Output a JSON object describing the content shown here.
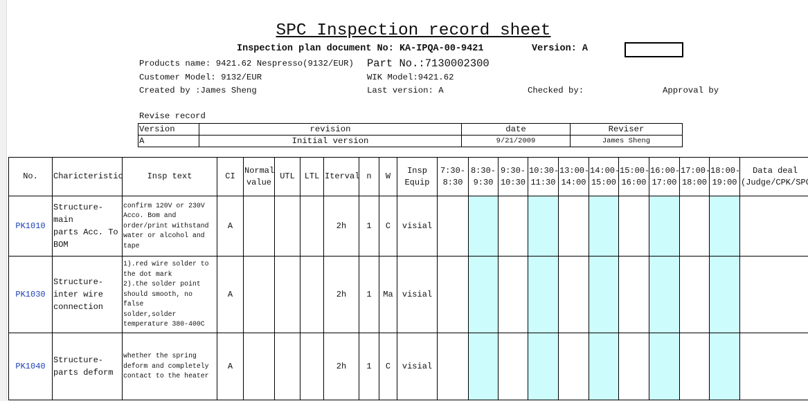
{
  "header": {
    "title": "SPC Inspection record sheet",
    "document_line": "Inspection plan document No: KA-IPQA-00-9421",
    "version": "Version: A",
    "products_name": "Products name: 9421.62 Nespresso(9132/EUR)",
    "part_no": "Part No.:7130002300",
    "customer_model": "Customer Model: 9132/EUR",
    "wik_model": "WIK Model:9421.62",
    "created_by": "Created by :James Sheng",
    "last_version": "Last version: A",
    "checked_by": "Checked by:",
    "approval_by": "Approval by"
  },
  "revise_record": {
    "title": "Revise record",
    "columns": [
      "Version",
      "revision",
      "date",
      "Reviser"
    ],
    "rows": [
      [
        "A",
        "Initial version",
        "9/21/2009",
        "James Sheng"
      ]
    ]
  },
  "table": {
    "columns": [
      "No.",
      "Charicteristic",
      "Insp text",
      "CI",
      "Normal\nvalue",
      "UTL",
      "LTL",
      "Iterval",
      "n",
      "W",
      "Insp\nEquip",
      "7:30-\n8:30",
      "8:30-\n9:30",
      "9:30-\n10:30",
      "10:30-\n11:30",
      "13:00-\n14:00",
      "14:00-\n15:00",
      "15:00-\n16:00",
      "16:00-\n17:00",
      "17:00-\n18:00",
      "18:00-\n19:00",
      "Data deal\n(Judge/CPK/SPC)"
    ],
    "rows": [
      {
        "no": "PK1010",
        "characteristic": "Structure-main\nparts Acc. To\nBOM",
        "insp_text": "confirm 120V or 230V\nAcco. Bom and\norder/print withstand\nwater or alcohol and\ntape",
        "ci": "A",
        "interval": "2h",
        "n": "1",
        "w": "C",
        "equip": "visial"
      },
      {
        "no": "PK1030",
        "characteristic": "Structure-\ninter wire\nconnection",
        "insp_text": "1).red wire solder to\nthe dot mark\n2).the solder point\nshould smooth, no false\nsolder,solder\ntemperature 380-400C",
        "ci": "A",
        "interval": "2h",
        "n": "1",
        "w": "Ma",
        "equip": "visial"
      },
      {
        "no": "PK1040",
        "characteristic": "Structure-\nparts deform",
        "insp_text": "whether the spring\ndeform and completely\ncontact to the heater",
        "ci": "A",
        "interval": "2h",
        "n": "1",
        "w": "C",
        "equip": "visial"
      }
    ]
  }
}
